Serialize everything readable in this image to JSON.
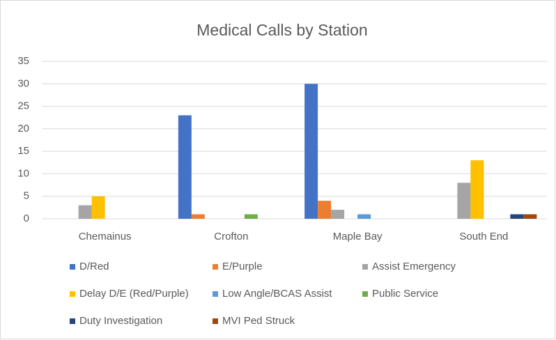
{
  "chart_data": {
    "type": "bar",
    "title": "Medical Calls by Station",
    "categories": [
      "Chemainus",
      "Crofton",
      "Maple Bay",
      "South End"
    ],
    "series": [
      {
        "name": "D/Red",
        "color": "#4472c4",
        "values": [
          0,
          23,
          30,
          0
        ]
      },
      {
        "name": "E/Purple",
        "color": "#ed7d31",
        "values": [
          0,
          1,
          4,
          0
        ]
      },
      {
        "name": "Assist Emergency",
        "color": "#a5a5a5",
        "values": [
          3,
          0,
          2,
          8
        ]
      },
      {
        "name": "Delay D/E (Red/Purple)",
        "color": "#ffc000",
        "values": [
          5,
          0,
          0,
          13
        ]
      },
      {
        "name": "Low Angle/BCAS Assist",
        "color": "#5b9bd5",
        "values": [
          0,
          0,
          1,
          0
        ]
      },
      {
        "name": "Public Service",
        "color": "#70ad47",
        "values": [
          0,
          1,
          0,
          0
        ]
      },
      {
        "name": "Duty Investigation",
        "color": "#264478",
        "values": [
          0,
          0,
          0,
          1
        ]
      },
      {
        "name": "MVI Ped Struck",
        "color": "#9e480e",
        "values": [
          0,
          0,
          0,
          1
        ]
      }
    ],
    "ylim": [
      0,
      35
    ],
    "yticks": [
      0,
      5,
      10,
      15,
      20,
      25,
      30,
      35
    ],
    "grid": true,
    "legend": "bottom"
  }
}
